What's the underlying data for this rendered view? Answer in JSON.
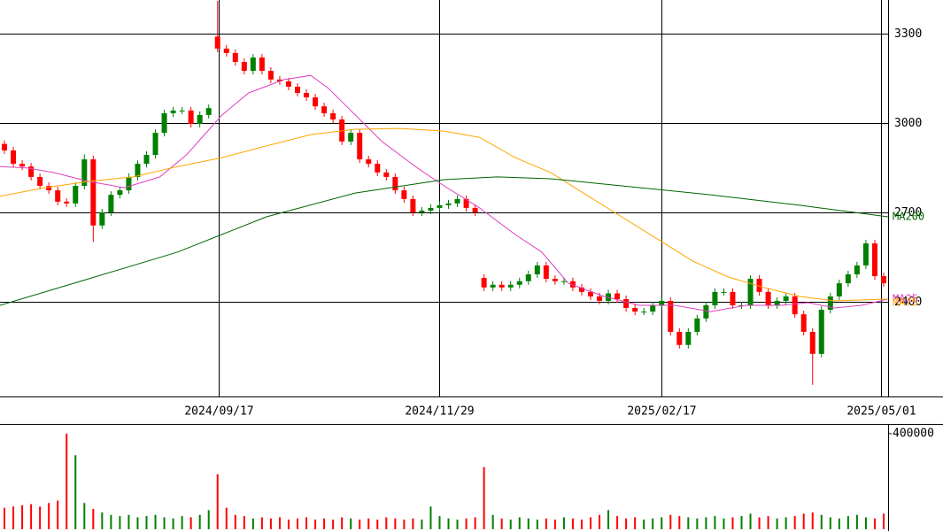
{
  "chart_data": {
    "type": "candlestick",
    "xlim": [
      0,
      100
    ],
    "xticks": [
      {
        "value": 24.6,
        "label": "2024/09/17"
      },
      {
        "value": 49.5,
        "label": "2024/11/29"
      },
      {
        "value": 74.5,
        "label": "2025/02/17"
      },
      {
        "value": 99.2,
        "label": "2025/05/01"
      }
    ],
    "ylim": [
      2082,
      3413
    ],
    "yticks": [
      3300,
      3000,
      2700,
      2400
    ],
    "grid": true,
    "up_color": "#008000",
    "down_color": "#ff0000",
    "open": [
      2930,
      2908,
      2863,
      2854,
      2819,
      2789,
      2774,
      2736,
      2730,
      2789,
      2878,
      2656,
      2700,
      2759,
      2774,
      2819,
      2863,
      2893,
      2967,
      3033,
      3042,
      3042,
      2997,
      3027,
      3290,
      3250,
      3235,
      3205,
      3175,
      3220,
      3175,
      3146,
      3140,
      3122,
      3101,
      3086,
      3056,
      3033,
      3012,
      2938,
      2967,
      2878,
      2863,
      2834,
      2819,
      2774,
      2745,
      2700,
      2706,
      2715,
      2724,
      2730,
      2745,
      2715,
      2480,
      2448,
      2457,
      2448,
      2457,
      2469,
      2492,
      2522,
      2477,
      2469,
      2469,
      2448,
      2433,
      2418,
      2403,
      2428,
      2409,
      2379,
      2367,
      2367,
      2388,
      2403,
      2299,
      2255,
      2299,
      2344,
      2388,
      2433,
      2433,
      2388,
      2388,
      2477,
      2433,
      2388,
      2403,
      2418,
      2358,
      2299,
      2225,
      2373,
      2418,
      2462,
      2492,
      2522,
      2596,
      2486
    ],
    "high": [
      2942,
      2920,
      2875,
      2866,
      2831,
      2801,
      2786,
      2748,
      2801,
      2895,
      2890,
      2712,
      2771,
      2786,
      2831,
      2875,
      2905,
      2979,
      3045,
      3054,
      3054,
      3054,
      3039,
      3062,
      3410,
      3262,
      3247,
      3217,
      3232,
      3232,
      3187,
      3158,
      3152,
      3134,
      3113,
      3098,
      3068,
      3045,
      3024,
      2979,
      2979,
      2890,
      2875,
      2846,
      2831,
      2786,
      2757,
      2718,
      2727,
      2736,
      2742,
      2757,
      2757,
      2727,
      2492,
      2469,
      2469,
      2469,
      2481,
      2504,
      2534,
      2534,
      2489,
      2481,
      2481,
      2460,
      2445,
      2430,
      2440,
      2440,
      2421,
      2391,
      2379,
      2400,
      2415,
      2415,
      2311,
      2311,
      2356,
      2400,
      2445,
      2445,
      2445,
      2400,
      2489,
      2489,
      2445,
      2415,
      2430,
      2430,
      2370,
      2311,
      2385,
      2430,
      2474,
      2504,
      2534,
      2608,
      2608,
      2498
    ],
    "low": [
      2896,
      2851,
      2842,
      2807,
      2777,
      2762,
      2724,
      2718,
      2718,
      2777,
      2600,
      2644,
      2688,
      2747,
      2762,
      2807,
      2851,
      2881,
      2955,
      3021,
      3030,
      2985,
      2985,
      3015,
      3238,
      3223,
      3193,
      3163,
      3163,
      3163,
      3134,
      3128,
      3110,
      3089,
      3074,
      3044,
      3021,
      3000,
      2926,
      2926,
      2866,
      2851,
      2822,
      2807,
      2762,
      2733,
      2688,
      2688,
      2694,
      2703,
      2712,
      2718,
      2703,
      2688,
      2436,
      2436,
      2436,
      2436,
      2445,
      2457,
      2480,
      2465,
      2457,
      2457,
      2436,
      2421,
      2406,
      2391,
      2391,
      2397,
      2367,
      2355,
      2355,
      2355,
      2376,
      2287,
      2243,
      2243,
      2287,
      2332,
      2376,
      2421,
      2376,
      2376,
      2376,
      2421,
      2376,
      2376,
      2391,
      2346,
      2287,
      2121,
      2213,
      2361,
      2406,
      2450,
      2480,
      2510,
      2474,
      2450
    ],
    "close": [
      2908,
      2863,
      2854,
      2819,
      2789,
      2774,
      2736,
      2730,
      2789,
      2878,
      2656,
      2700,
      2759,
      2774,
      2819,
      2863,
      2893,
      2967,
      3033,
      3042,
      3042,
      2997,
      3027,
      3050,
      3250,
      3235,
      3205,
      3175,
      3220,
      3175,
      3146,
      3140,
      3122,
      3101,
      3086,
      3056,
      3033,
      3012,
      2938,
      2967,
      2878,
      2863,
      2834,
      2819,
      2774,
      2745,
      2700,
      2706,
      2715,
      2724,
      2730,
      2745,
      2715,
      2700,
      2448,
      2457,
      2448,
      2457,
      2469,
      2492,
      2522,
      2477,
      2469,
      2469,
      2448,
      2433,
      2418,
      2403,
      2428,
      2409,
      2379,
      2367,
      2367,
      2388,
      2403,
      2299,
      2255,
      2299,
      2344,
      2388,
      2433,
      2433,
      2388,
      2388,
      2477,
      2433,
      2388,
      2403,
      2418,
      2358,
      2299,
      2225,
      2373,
      2418,
      2462,
      2492,
      2522,
      2596,
      2486,
      2462
    ],
    "moving_averages": [
      {
        "name": "MA25",
        "color": "#e040c0",
        "x": [
          0,
          3,
          6,
          10,
          14,
          18,
          21,
          25,
          28,
          32,
          35,
          37,
          40,
          43,
          47,
          50,
          54,
          58,
          61,
          64,
          68,
          72,
          76,
          80,
          84,
          88,
          91,
          94,
          97,
          100
        ],
        "values": [
          2854,
          2849,
          2834,
          2804,
          2783,
          2819,
          2893,
          3027,
          3101,
          3146,
          3160,
          3116,
          3027,
          2938,
          2849,
          2789,
          2715,
          2626,
          2567,
          2462,
          2418,
          2388,
          2388,
          2367,
          2388,
          2388,
          2397,
          2379,
          2388,
          2409
        ]
      },
      {
        "name": "MA75",
        "color": "#ffa500",
        "x": [
          0,
          5,
          10,
          15,
          20,
          25,
          30,
          35,
          40,
          45,
          50,
          54,
          58,
          62,
          66,
          70,
          74,
          78,
          82,
          86,
          90,
          94,
          100
        ],
        "values": [
          2754,
          2783,
          2804,
          2819,
          2854,
          2884,
          2923,
          2961,
          2979,
          2982,
          2973,
          2952,
          2884,
          2834,
          2759,
          2685,
          2611,
          2537,
          2483,
          2448,
          2418,
          2403,
          2409
        ]
      },
      {
        "name": "MA200",
        "color": "#006400",
        "x": [
          0,
          10,
          20,
          30,
          40,
          50,
          56,
          62,
          70,
          80,
          90,
          100
        ],
        "values": [
          2388,
          2477,
          2567,
          2685,
          2765,
          2810,
          2819,
          2813,
          2789,
          2759,
          2724,
          2685
        ]
      }
    ],
    "volume": {
      "ylim": [
        0,
        437000
      ],
      "yticks": [
        400000
      ],
      "values": [
        90000,
        95000,
        100000,
        105000,
        95000,
        110000,
        120000,
        400000,
        310000,
        110000,
        85000,
        70000,
        60000,
        55000,
        60000,
        50000,
        55000,
        60000,
        50000,
        45000,
        55000,
        50000,
        60000,
        80000,
        230000,
        90000,
        60000,
        55000,
        45000,
        50000,
        45000,
        50000,
        40000,
        45000,
        50000,
        40000,
        45000,
        40000,
        50000,
        45000,
        40000,
        45000,
        40000,
        50000,
        45000,
        40000,
        45000,
        40000,
        95000,
        55000,
        45000,
        40000,
        45000,
        50000,
        260000,
        60000,
        45000,
        40000,
        50000,
        45000,
        40000,
        45000,
        40000,
        50000,
        45000,
        40000,
        50000,
        60000,
        80000,
        55000,
        45000,
        50000,
        40000,
        45000,
        50000,
        60000,
        55000,
        50000,
        45000,
        50000,
        55000,
        45000,
        50000,
        55000,
        65000,
        50000,
        55000,
        45000,
        50000,
        55000,
        65000,
        70000,
        60000,
        50000,
        45000,
        55000,
        60000,
        50000,
        45000,
        65000
      ]
    }
  }
}
